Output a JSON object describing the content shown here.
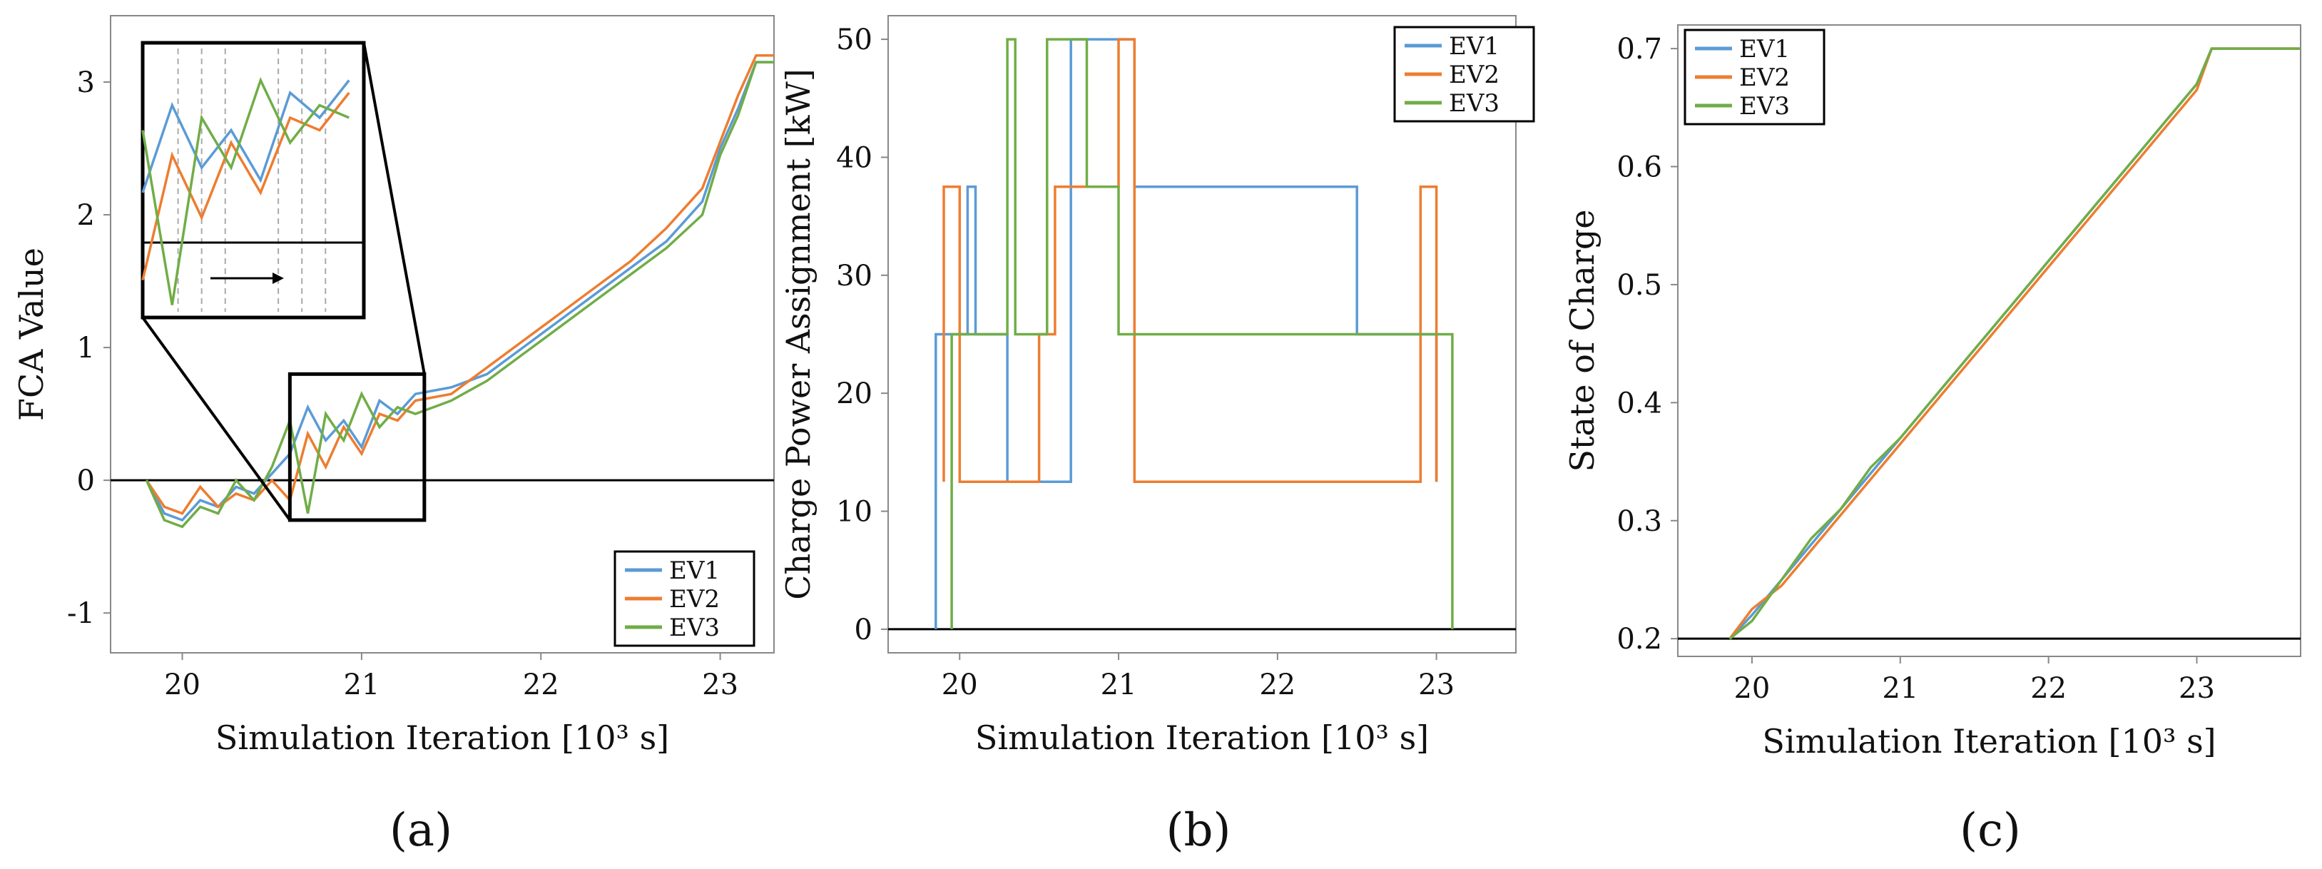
{
  "colors": {
    "EV1": "#5b9bd5",
    "EV2": "#ed7d31",
    "EV3": "#70ad47",
    "axis": "#888888",
    "zero_line": "#000000"
  },
  "chart_data": [
    {
      "type": "line",
      "panel_label": "(a)",
      "title": "",
      "xlabel": "Simulation Iteration [10³ s]",
      "ylabel": "FCA Value",
      "xlim": [
        19.6,
        23.3
      ],
      "ylim": [
        -1.3,
        3.5
      ],
      "xticks": [
        "20",
        "21",
        "22",
        "23"
      ],
      "yticks": [
        "-1",
        "0",
        "1",
        "2",
        "3"
      ],
      "reference_line_y": 0,
      "legend": {
        "position": "bottom-right",
        "entries": [
          "EV1",
          "EV2",
          "EV3"
        ]
      },
      "annotations": [
        "zoom inset of region x 20.6–21.35, y -0.3–0.8 with arrow showing iteration direction"
      ],
      "series": [
        {
          "name": "EV1",
          "x": [
            19.8,
            19.9,
            20.0,
            20.1,
            20.2,
            20.3,
            20.4,
            20.5,
            20.6,
            20.7,
            20.8,
            20.9,
            21.0,
            21.1,
            21.2,
            21.3,
            21.5,
            21.7,
            21.9,
            22.1,
            22.3,
            22.5,
            22.7,
            22.9,
            23.0,
            23.1,
            23.2,
            23.3
          ],
          "y": [
            0.0,
            -0.25,
            -0.3,
            -0.15,
            -0.2,
            -0.05,
            -0.1,
            0.05,
            0.2,
            0.55,
            0.3,
            0.45,
            0.25,
            0.6,
            0.5,
            0.65,
            0.7,
            0.8,
            1.0,
            1.2,
            1.4,
            1.6,
            1.8,
            2.1,
            2.5,
            2.8,
            3.15,
            3.15
          ]
        },
        {
          "name": "EV2",
          "x": [
            19.8,
            19.9,
            20.0,
            20.1,
            20.2,
            20.3,
            20.4,
            20.5,
            20.6,
            20.7,
            20.8,
            20.9,
            21.0,
            21.1,
            21.2,
            21.3,
            21.5,
            21.7,
            21.9,
            22.1,
            22.3,
            22.5,
            22.7,
            22.9,
            23.0,
            23.1,
            23.2,
            23.3
          ],
          "y": [
            0.0,
            -0.2,
            -0.25,
            -0.05,
            -0.2,
            -0.1,
            -0.15,
            0.0,
            -0.15,
            0.35,
            0.1,
            0.4,
            0.2,
            0.5,
            0.45,
            0.6,
            0.65,
            0.85,
            1.05,
            1.25,
            1.45,
            1.65,
            1.9,
            2.2,
            2.55,
            2.9,
            3.2,
            3.2
          ]
        },
        {
          "name": "EV3",
          "x": [
            19.8,
            19.9,
            20.0,
            20.1,
            20.2,
            20.3,
            20.4,
            20.5,
            20.6,
            20.7,
            20.8,
            20.9,
            21.0,
            21.1,
            21.2,
            21.3,
            21.5,
            21.7,
            21.9,
            22.1,
            22.3,
            22.5,
            22.7,
            22.9,
            23.0,
            23.1,
            23.2,
            23.3
          ],
          "y": [
            0.0,
            -0.3,
            -0.35,
            -0.2,
            -0.25,
            0.0,
            -0.15,
            0.1,
            0.45,
            -0.25,
            0.5,
            0.3,
            0.65,
            0.4,
            0.55,
            0.5,
            0.6,
            0.75,
            0.95,
            1.15,
            1.35,
            1.55,
            1.75,
            2.0,
            2.45,
            2.75,
            3.15,
            3.15
          ]
        }
      ]
    },
    {
      "type": "line",
      "panel_label": "(b)",
      "title": "",
      "xlabel": "Simulation Iteration [10³ s]",
      "ylabel": "Charge Power Assignment [kW]",
      "xlim": [
        19.55,
        23.5
      ],
      "ylim": [
        -2,
        52
      ],
      "xticks": [
        "20",
        "21",
        "22",
        "23"
      ],
      "yticks": [
        "0",
        "10",
        "20",
        "30",
        "40",
        "50"
      ],
      "reference_line_y": 0,
      "legend": {
        "position": "top-right",
        "entries": [
          "EV1",
          "EV2",
          "EV3"
        ]
      },
      "series": [
        {
          "name": "EV1",
          "x": [
            19.85,
            19.85,
            20.05,
            20.05,
            20.1,
            20.1,
            20.3,
            20.3,
            20.7,
            20.7,
            21.1,
            21.1,
            22.5,
            22.5,
            23.0,
            23.0
          ],
          "y": [
            0,
            25,
            25,
            37.5,
            37.5,
            25,
            25,
            12.5,
            12.5,
            50,
            50,
            37.5,
            37.5,
            25,
            25,
            12.5
          ]
        },
        {
          "name": "EV2",
          "x": [
            19.9,
            19.9,
            20.0,
            20.0,
            20.5,
            20.5,
            20.6,
            20.6,
            21.0,
            21.0,
            21.1,
            21.1,
            22.9,
            22.9,
            23.0,
            23.0
          ],
          "y": [
            12.5,
            37.5,
            37.5,
            12.5,
            12.5,
            25,
            25,
            37.5,
            37.5,
            50,
            50,
            12.5,
            12.5,
            37.5,
            37.5,
            12.5
          ]
        },
        {
          "name": "EV3",
          "x": [
            19.95,
            19.95,
            20.3,
            20.3,
            20.35,
            20.35,
            20.55,
            20.55,
            20.8,
            20.8,
            21.0,
            21.0,
            23.05,
            23.05,
            23.1,
            23.1
          ],
          "y": [
            0,
            25,
            25,
            50,
            50,
            25,
            25,
            50,
            50,
            37.5,
            37.5,
            25,
            25,
            25,
            25,
            0
          ]
        }
      ]
    },
    {
      "type": "line",
      "panel_label": "(c)",
      "title": "",
      "xlabel": "Simulation Iteration [10³ s]",
      "ylabel": "State of Charge",
      "xlim": [
        19.5,
        23.7
      ],
      "ylim": [
        0.185,
        0.72
      ],
      "xticks": [
        "20",
        "21",
        "22",
        "23"
      ],
      "yticks": [
        "0.2",
        "0.3",
        "0.4",
        "0.5",
        "0.6",
        "0.7"
      ],
      "reference_line_y": 0.2,
      "legend": {
        "position": "top-left",
        "entries": [
          "EV1",
          "EV2",
          "EV3"
        ]
      },
      "series": [
        {
          "name": "EV1",
          "x": [
            19.85,
            20.0,
            20.2,
            20.4,
            20.6,
            20.8,
            21.0,
            21.2,
            21.4,
            21.6,
            21.8,
            22.0,
            22.2,
            22.4,
            22.6,
            22.8,
            23.0,
            23.1,
            23.7
          ],
          "y": [
            0.2,
            0.22,
            0.25,
            0.28,
            0.31,
            0.34,
            0.37,
            0.4,
            0.43,
            0.46,
            0.49,
            0.52,
            0.55,
            0.58,
            0.61,
            0.64,
            0.67,
            0.7,
            0.7
          ]
        },
        {
          "name": "EV2",
          "x": [
            19.85,
            20.0,
            20.2,
            20.4,
            20.6,
            20.8,
            21.0,
            21.2,
            21.4,
            21.6,
            21.8,
            22.0,
            22.2,
            22.4,
            22.6,
            22.8,
            23.0,
            23.1,
            23.7
          ],
          "y": [
            0.2,
            0.225,
            0.245,
            0.275,
            0.305,
            0.335,
            0.365,
            0.395,
            0.425,
            0.455,
            0.485,
            0.515,
            0.545,
            0.575,
            0.605,
            0.635,
            0.665,
            0.7,
            0.7
          ]
        },
        {
          "name": "EV3",
          "x": [
            19.85,
            20.0,
            20.2,
            20.4,
            20.6,
            20.8,
            21.0,
            21.2,
            21.4,
            21.6,
            21.8,
            22.0,
            22.2,
            22.4,
            22.6,
            22.8,
            23.0,
            23.1,
            23.7
          ],
          "y": [
            0.2,
            0.215,
            0.25,
            0.285,
            0.31,
            0.345,
            0.37,
            0.4,
            0.43,
            0.46,
            0.49,
            0.52,
            0.55,
            0.58,
            0.61,
            0.64,
            0.67,
            0.7,
            0.7
          ]
        }
      ]
    }
  ]
}
